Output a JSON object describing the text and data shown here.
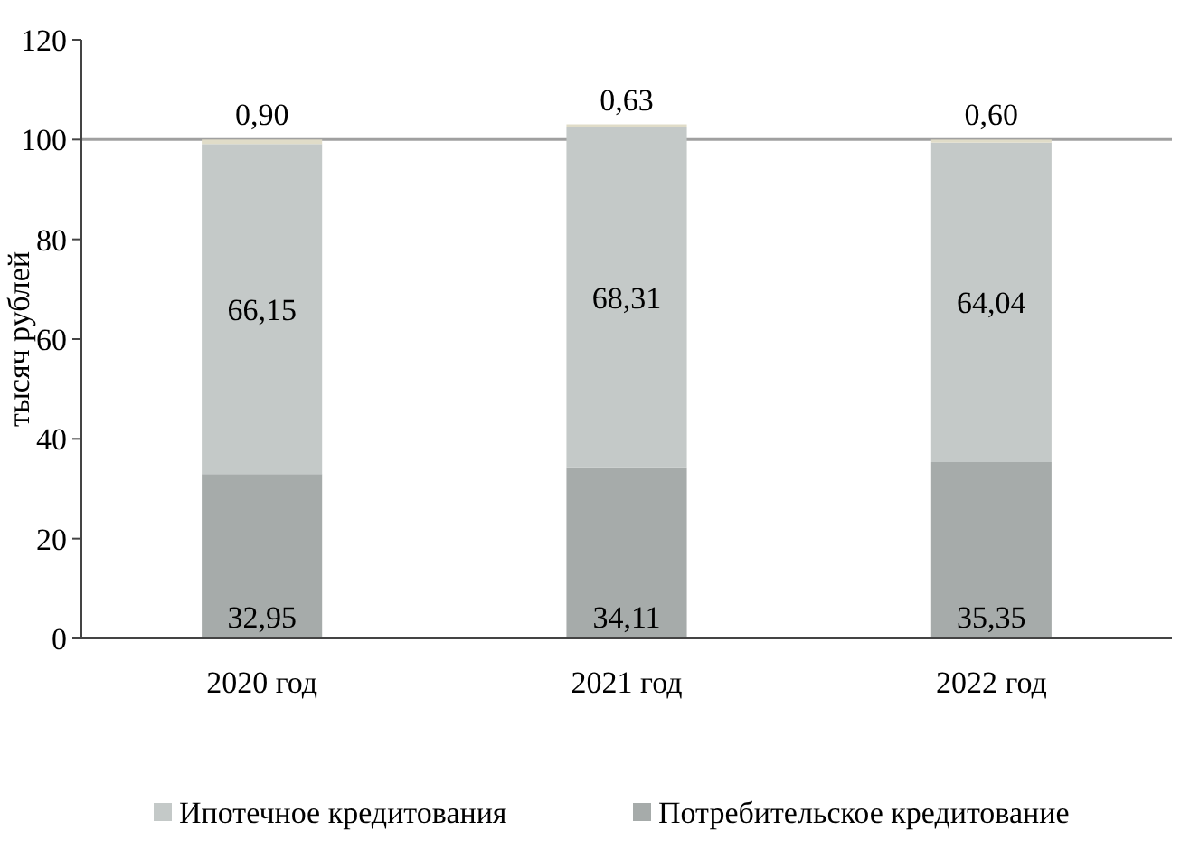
{
  "chart_data": {
    "type": "bar",
    "stacked": true,
    "ylabel": "тысяч рублей",
    "categories": [
      "2020 год",
      "2021 год",
      "2022 год"
    ],
    "series": [
      {
        "name": "Потребительское кредитование",
        "color": "#a6abaa",
        "values": [
          32.95,
          34.11,
          35.35
        ],
        "value_labels": [
          "32,95",
          "34,11",
          "35,35"
        ]
      },
      {
        "name": "Ипотечное кредитования",
        "color": "#c4c9c8",
        "values": [
          66.15,
          68.31,
          64.04
        ],
        "value_labels": [
          "66,15",
          "68,31",
          "64,04"
        ]
      },
      {
        "color": "#e0dcc8",
        "values": [
          0.9,
          0.63,
          0.6
        ],
        "value_labels": [
          "0,90",
          "0,63",
          "0,60"
        ]
      }
    ],
    "ylim": [
      0,
      120
    ],
    "yticks": [
      0,
      20,
      40,
      60,
      80,
      100,
      120
    ],
    "ref_lines": [
      {
        "axis": "y",
        "value": 100,
        "color": "#a0a0a0"
      }
    ],
    "legend": "bottom"
  }
}
